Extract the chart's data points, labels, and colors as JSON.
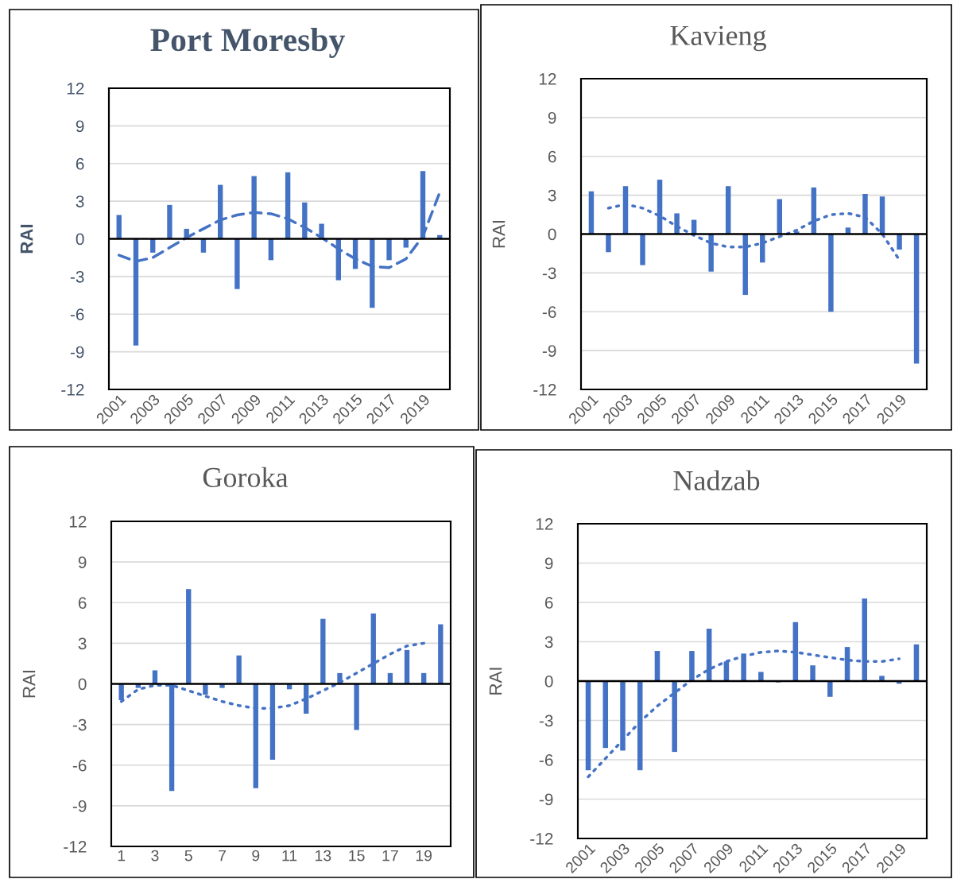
{
  "chart_data": [
    {
      "type": "bar",
      "title": "Port Moresby",
      "ylabel": "RAI",
      "categories": [
        "2001",
        null,
        "2003",
        null,
        "2005",
        null,
        "2007",
        null,
        "2009",
        null,
        "2011",
        null,
        "2013",
        null,
        "2015",
        null,
        "2017",
        null,
        "2019",
        null
      ],
      "ylim": [
        -12,
        12
      ],
      "yticks": [
        -12,
        -9,
        -6,
        -3,
        0,
        3,
        6,
        9,
        12
      ],
      "grid": "y",
      "series": [
        {
          "color": "#4472c4",
          "values": [
            1.9,
            -8.5,
            -1.1,
            2.7,
            0.8,
            -1.1,
            4.3,
            -4.0,
            5.0,
            -1.7,
            5.3,
            2.9,
            1.2,
            -3.3,
            -2.4,
            -5.5,
            -1.7,
            -0.7,
            5.4,
            0.3
          ]
        },
        {
          "type": "line",
          "color": "#4472c4",
          "line_style": "dashed",
          "values": [
            -1.3,
            -1.8,
            -1.5,
            -0.7,
            0.1,
            0.8,
            1.5,
            1.9,
            2.1,
            2.0,
            1.6,
            0.9,
            0.1,
            -0.8,
            -1.6,
            -2.2,
            -2.3,
            -1.6,
            0.2,
            3.7
          ]
        }
      ]
    },
    {
      "type": "bar",
      "title": "Kavieng",
      "ylabel": "RAI",
      "categories": [
        "2001",
        null,
        "2003",
        null,
        "2005",
        null,
        "2007",
        null,
        "2009",
        null,
        "2011",
        null,
        "2013",
        null,
        "2015",
        null,
        "2017",
        null,
        "2019",
        null
      ],
      "ylim": [
        -12,
        12
      ],
      "yticks": [
        -12,
        -9,
        -6,
        -3,
        0,
        3,
        6,
        9,
        12
      ],
      "grid": "y",
      "series": [
        {
          "color": "#4472c4",
          "values": [
            3.3,
            -1.4,
            3.7,
            -2.4,
            4.2,
            1.6,
            1.1,
            -2.9,
            3.7,
            -4.7,
            -2.2,
            2.7,
            0.2,
            3.6,
            -6.0,
            0.5,
            3.1,
            2.9,
            -1.2,
            -10.0
          ]
        },
        {
          "type": "line",
          "color": "#4472c4",
          "line_style": "dotted",
          "values": [
            null,
            2.0,
            2.3,
            2.0,
            1.4,
            0.6,
            -0.1,
            -0.7,
            -1.0,
            -1.0,
            -0.7,
            -0.2,
            0.3,
            1.0,
            1.5,
            1.6,
            1.3,
            0.0,
            -2.0,
            null
          ]
        }
      ]
    },
    {
      "type": "bar",
      "title": "Goroka",
      "ylabel": "RAI",
      "categories": [
        "1",
        null,
        "3",
        null,
        "5",
        null,
        "7",
        null,
        "9",
        null,
        "11",
        null,
        "13",
        null,
        "15",
        null,
        "17",
        null,
        "19",
        null
      ],
      "ylim": [
        -12,
        12
      ],
      "yticks": [
        -12,
        -9,
        -6,
        -3,
        0,
        3,
        6,
        9,
        12
      ],
      "grid": "y",
      "series": [
        {
          "color": "#4472c4",
          "values": [
            -1.2,
            -0.3,
            1.0,
            -7.9,
            7.0,
            -0.8,
            -0.3,
            2.1,
            -7.7,
            -5.6,
            -0.4,
            -2.2,
            4.8,
            0.8,
            -3.4,
            5.2,
            0.8,
            2.5,
            0.8,
            4.4
          ]
        },
        {
          "type": "line",
          "color": "#4472c4",
          "line_style": "dotted",
          "values": [
            -1.3,
            -0.4,
            -0.1,
            -0.1,
            -0.5,
            -0.9,
            -1.3,
            -1.6,
            -1.8,
            -1.8,
            -1.6,
            -1.1,
            -0.5,
            0.1,
            0.8,
            1.5,
            2.2,
            2.8,
            3.0,
            null
          ]
        }
      ]
    },
    {
      "type": "bar",
      "title": "Nadzab",
      "ylabel": "RAI",
      "categories": [
        "2001",
        null,
        "2003",
        null,
        "2005",
        null,
        "2007",
        null,
        "2009",
        null,
        "2011",
        null,
        "2013",
        null,
        "2015",
        null,
        "2017",
        null,
        "2019",
        null
      ],
      "ylim": [
        -12,
        12
      ],
      "yticks": [
        -12,
        -9,
        -6,
        -3,
        0,
        3,
        6,
        9,
        12
      ],
      "grid": "y",
      "series": [
        {
          "color": "#4472c4",
          "values": [
            -6.8,
            -5.1,
            -5.3,
            -6.8,
            2.3,
            -5.4,
            2.3,
            4.0,
            1.5,
            2.1,
            0.7,
            -0.1,
            4.5,
            1.2,
            -1.2,
            2.6,
            6.3,
            0.4,
            -0.2,
            2.8
          ]
        },
        {
          "type": "line",
          "color": "#4472c4",
          "line_style": "dotted",
          "values": [
            -7.3,
            -5.9,
            -4.5,
            -3.1,
            -1.9,
            -0.9,
            0.1,
            0.9,
            1.5,
            1.9,
            2.2,
            2.3,
            2.2,
            2.0,
            1.8,
            1.6,
            1.5,
            1.5,
            1.7,
            null
          ]
        }
      ]
    }
  ]
}
